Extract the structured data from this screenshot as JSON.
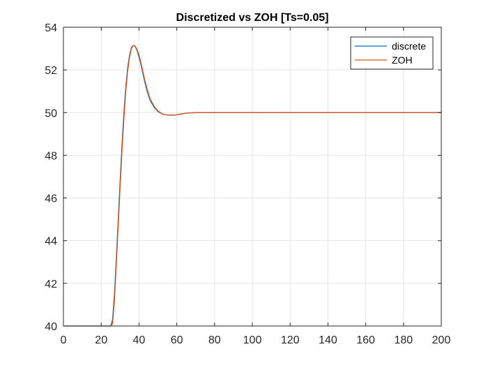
{
  "chart_data": {
    "type": "line",
    "title": "Discretized vs ZOH [Ts=0.05]",
    "xlabel": "",
    "ylabel": "",
    "xlim": [
      0,
      200
    ],
    "ylim": [
      40,
      54
    ],
    "xticks": [
      0,
      20,
      40,
      60,
      80,
      100,
      120,
      140,
      160,
      180,
      200
    ],
    "yticks": [
      40,
      42,
      44,
      46,
      48,
      50,
      52,
      54
    ],
    "xtick_labels": [
      "0",
      "20",
      "40",
      "60",
      "80",
      "100",
      "120",
      "140",
      "160",
      "180",
      "200"
    ],
    "ytick_labels": [
      "40",
      "42",
      "44",
      "46",
      "48",
      "50",
      "52",
      "54"
    ],
    "grid": true,
    "legend_position": "top-right",
    "series": [
      {
        "name": "discrete",
        "color": "#0072BD",
        "x": [
          0,
          25,
          26,
          27,
          28,
          29,
          30,
          31,
          32,
          33,
          34,
          35,
          36,
          37,
          38,
          39,
          40,
          41,
          42,
          43,
          44,
          45,
          46,
          48,
          50,
          52,
          54,
          56,
          58,
          60,
          62,
          64,
          66,
          68,
          70,
          75,
          80,
          90,
          100,
          200
        ],
        "y": [
          40,
          40,
          40.3,
          41.5,
          43.2,
          45.0,
          46.8,
          48.5,
          50.0,
          51.2,
          52.1,
          52.7,
          53.05,
          53.15,
          53.1,
          52.9,
          52.6,
          52.25,
          51.85,
          51.45,
          51.1,
          50.8,
          50.55,
          50.25,
          50.05,
          49.95,
          49.9,
          49.88,
          49.88,
          49.9,
          49.93,
          49.96,
          49.98,
          49.99,
          50.0,
          50.0,
          50.0,
          50.0,
          50.0,
          50.0
        ]
      },
      {
        "name": "ZOH",
        "color": "#D95319",
        "x": [
          0,
          25,
          26,
          27,
          28,
          29,
          30,
          31,
          32,
          33,
          34,
          35,
          36,
          37,
          38,
          39,
          40,
          41,
          42,
          43,
          44,
          45,
          46,
          48,
          50,
          52,
          54,
          56,
          58,
          60,
          62,
          64,
          66,
          68,
          70,
          75,
          80,
          90,
          100,
          200
        ],
        "y": [
          40,
          40,
          40.1,
          41.2,
          42.9,
          44.7,
          46.5,
          48.2,
          49.7,
          51.0,
          51.95,
          52.6,
          53.0,
          53.15,
          53.12,
          52.95,
          52.7,
          52.35,
          51.95,
          51.55,
          51.2,
          50.9,
          50.62,
          50.3,
          50.08,
          49.96,
          49.9,
          49.88,
          49.88,
          49.9,
          49.93,
          49.96,
          49.98,
          49.99,
          50.0,
          50.0,
          50.0,
          50.0,
          50.0,
          50.0
        ]
      }
    ]
  }
}
